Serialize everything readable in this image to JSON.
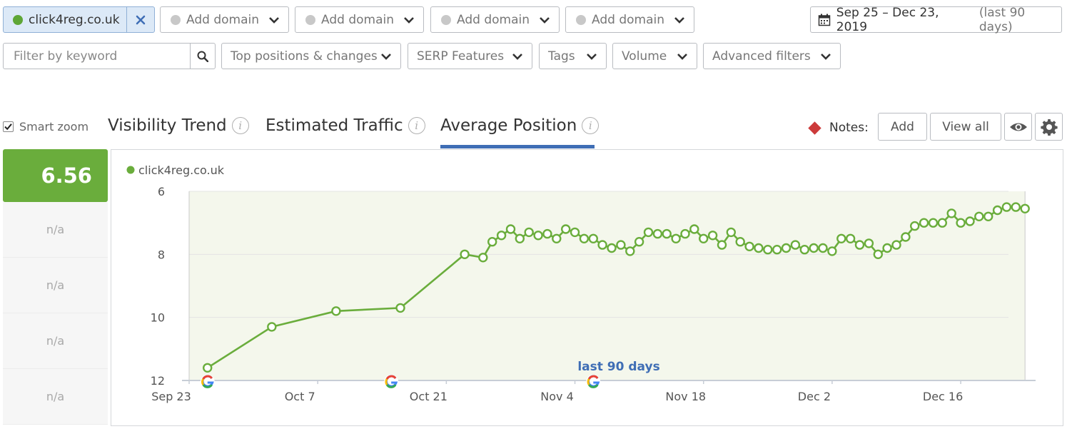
{
  "domains": {
    "main": "click4reg.co.uk",
    "add_labels": [
      "Add domain",
      "Add domain",
      "Add domain",
      "Add domain"
    ]
  },
  "date_range": {
    "dates": "Sep 25 – Dec 23, 2019",
    "label": "(last 90 days)"
  },
  "filters": {
    "keyword_placeholder": "Filter by keyword",
    "buttons": [
      "Top positions & changes",
      "SERP Features",
      "Tags",
      "Volume",
      "Advanced filters"
    ]
  },
  "smart_zoom": {
    "label": "Smart zoom",
    "checked": true
  },
  "tabs": [
    "Visibility Trend",
    "Estimated Traffic",
    "Average Position"
  ],
  "active_tab": "Average Position",
  "notes": {
    "label": "Notes:",
    "add": "Add",
    "view_all": "View all"
  },
  "scores": {
    "main": "6.56",
    "others": [
      "n/a",
      "n/a",
      "n/a",
      "n/a"
    ]
  },
  "colors": {
    "series": "#6aad3c",
    "accent": "#3f6eb5",
    "score_bg": "#6aad3c",
    "note_marker": "#cc3a3a"
  },
  "chart_data": {
    "type": "line",
    "legend": [
      "click4reg.co.uk"
    ],
    "ylabel": "",
    "y_reversed": true,
    "ylim": [
      6,
      12
    ],
    "yticks": [
      6,
      8,
      10,
      12
    ],
    "x_tick_labels": [
      "Sep 23",
      "Oct 7",
      "Oct 21",
      "Nov 4",
      "Nov 18",
      "Dec 2",
      "Dec 16"
    ],
    "x_start": "2019-09-25",
    "x_end": "2019-12-23",
    "annotation": "last 90 days",
    "google_marker_dates": [
      "2019-09-25",
      "2019-10-15",
      "2019-11-06"
    ],
    "series": [
      {
        "name": "click4reg.co.uk",
        "points": [
          [
            "2019-09-25",
            11.6
          ],
          [
            "2019-10-02",
            10.3
          ],
          [
            "2019-10-09",
            9.8
          ],
          [
            "2019-10-16",
            9.7
          ],
          [
            "2019-10-23",
            8.0
          ],
          [
            "2019-10-25",
            8.1
          ],
          [
            "2019-10-26",
            7.6
          ],
          [
            "2019-10-27",
            7.4
          ],
          [
            "2019-10-28",
            7.2
          ],
          [
            "2019-10-29",
            7.5
          ],
          [
            "2019-10-30",
            7.3
          ],
          [
            "2019-10-31",
            7.4
          ],
          [
            "2019-11-01",
            7.35
          ],
          [
            "2019-11-02",
            7.5
          ],
          [
            "2019-11-03",
            7.2
          ],
          [
            "2019-11-04",
            7.3
          ],
          [
            "2019-11-05",
            7.5
          ],
          [
            "2019-11-06",
            7.5
          ],
          [
            "2019-11-07",
            7.7
          ],
          [
            "2019-11-08",
            7.8
          ],
          [
            "2019-11-09",
            7.7
          ],
          [
            "2019-11-10",
            7.9
          ],
          [
            "2019-11-11",
            7.6
          ],
          [
            "2019-11-12",
            7.3
          ],
          [
            "2019-11-13",
            7.35
          ],
          [
            "2019-11-14",
            7.35
          ],
          [
            "2019-11-15",
            7.5
          ],
          [
            "2019-11-16",
            7.35
          ],
          [
            "2019-11-17",
            7.2
          ],
          [
            "2019-11-18",
            7.5
          ],
          [
            "2019-11-19",
            7.4
          ],
          [
            "2019-11-20",
            7.7
          ],
          [
            "2019-11-21",
            7.3
          ],
          [
            "2019-11-22",
            7.6
          ],
          [
            "2019-11-23",
            7.75
          ],
          [
            "2019-11-24",
            7.8
          ],
          [
            "2019-11-25",
            7.85
          ],
          [
            "2019-11-26",
            7.85
          ],
          [
            "2019-11-27",
            7.8
          ],
          [
            "2019-11-28",
            7.7
          ],
          [
            "2019-11-29",
            7.85
          ],
          [
            "2019-11-30",
            7.8
          ],
          [
            "2019-12-01",
            7.8
          ],
          [
            "2019-12-02",
            7.9
          ],
          [
            "2019-12-03",
            7.5
          ],
          [
            "2019-12-04",
            7.5
          ],
          [
            "2019-12-05",
            7.7
          ],
          [
            "2019-12-06",
            7.65
          ],
          [
            "2019-12-07",
            8.0
          ],
          [
            "2019-12-08",
            7.8
          ],
          [
            "2019-12-09",
            7.7
          ],
          [
            "2019-12-10",
            7.45
          ],
          [
            "2019-12-11",
            7.1
          ],
          [
            "2019-12-12",
            7.0
          ],
          [
            "2019-12-13",
            7.0
          ],
          [
            "2019-12-14",
            7.0
          ],
          [
            "2019-12-15",
            6.7
          ],
          [
            "2019-12-16",
            7.0
          ],
          [
            "2019-12-17",
            6.95
          ],
          [
            "2019-12-18",
            6.8
          ],
          [
            "2019-12-19",
            6.8
          ],
          [
            "2019-12-20",
            6.6
          ],
          [
            "2019-12-21",
            6.5
          ],
          [
            "2019-12-22",
            6.5
          ],
          [
            "2019-12-23",
            6.55
          ]
        ]
      }
    ],
    "grid": true
  }
}
